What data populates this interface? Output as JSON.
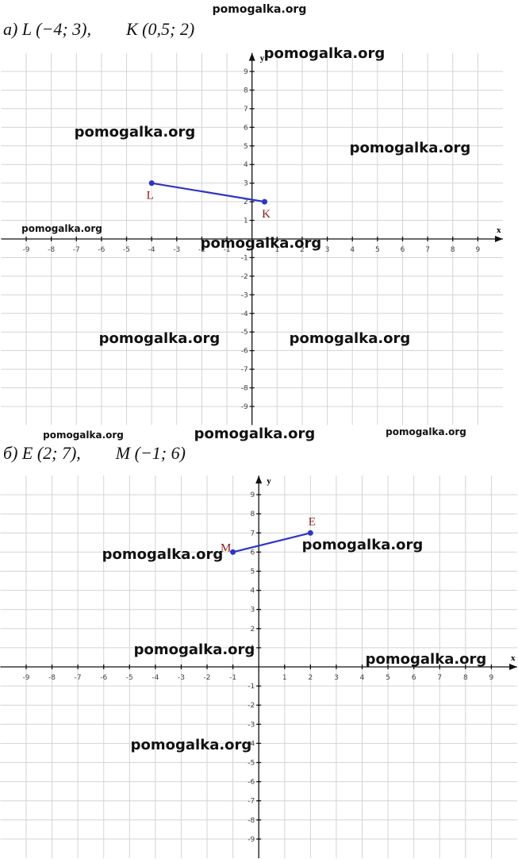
{
  "watermarks": [
    "pomogalka.org",
    "pomogalka.org",
    "pomogalka.org",
    "pomogalka.org",
    "pomogalka.org",
    "pomogalka.org",
    "pomogalka.org",
    "pomogalka.org",
    "pomogalka.org",
    "pomogalka.org",
    "pomogalka.org",
    "pomogalka.org",
    "pomogalka.org",
    "pomogalka.org",
    "pomogalka.org",
    "pomogalka.org"
  ],
  "chart_data": [
    {
      "type": "line",
      "title": "а) L (−4; 3),        K (0,5; 2)",
      "xlabel": "x",
      "ylabel": "y",
      "x": [
        -4,
        0.5
      ],
      "values": [
        3,
        2
      ],
      "point_labels": [
        "L",
        "K"
      ],
      "color": "#2b35c8",
      "xlim": [
        -10,
        10
      ],
      "ylim": [
        -10,
        10
      ],
      "xticks": [
        -9,
        -8,
        -7,
        -6,
        -5,
        -4,
        -3,
        -2,
        -1,
        1,
        2,
        3,
        4,
        5,
        6,
        7,
        8,
        9
      ],
      "yticks": [
        -9,
        -8,
        -7,
        -6,
        -5,
        -4,
        -3,
        -2,
        -1,
        1,
        2,
        3,
        4,
        5,
        6,
        7,
        8,
        9
      ],
      "grid": true
    },
    {
      "type": "line",
      "title": "б) E (2; 7),        M (−1; 6)",
      "xlabel": "x",
      "ylabel": "y",
      "x": [
        2,
        -1
      ],
      "values": [
        7,
        6
      ],
      "point_labels": [
        "E",
        "M"
      ],
      "color": "#2b35c8",
      "xlim": [
        -10,
        10
      ],
      "ylim": [
        -10,
        10
      ],
      "xticks": [
        -9,
        -8,
        -7,
        -6,
        -5,
        -4,
        -3,
        -2,
        -1,
        1,
        2,
        3,
        4,
        5,
        6,
        7,
        8,
        9
      ],
      "yticks": [
        -9,
        -8,
        -7,
        -6,
        -5,
        -4,
        -3,
        -2,
        -1,
        1,
        2,
        3,
        4,
        5,
        6,
        7,
        8,
        9
      ],
      "grid": true
    }
  ]
}
